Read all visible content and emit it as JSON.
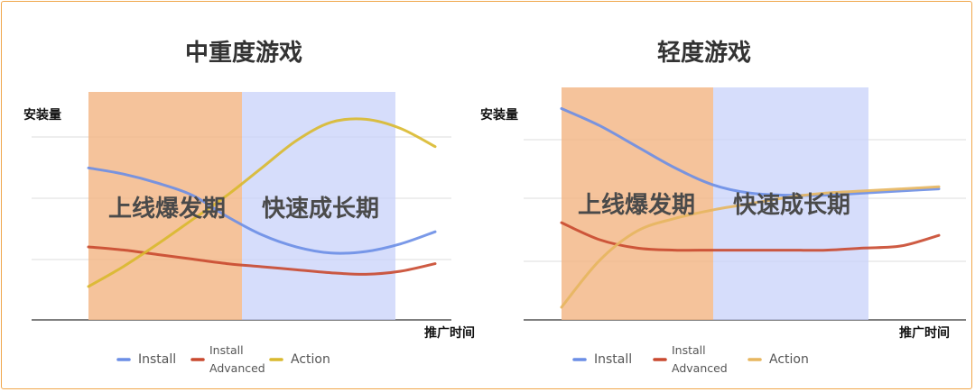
{
  "chart_data": [
    {
      "type": "line",
      "title": "中重度游戏",
      "ylabel": "安装量",
      "xlabel": "推广时间",
      "phases": [
        "上线爆发期",
        "快速成长期"
      ],
      "legend": [
        "Install",
        "Install Advanced",
        "Action"
      ],
      "grid": true,
      "legend_position": "bottom",
      "colors": {
        "phase1": "#f3b98a",
        "phase2": "#c8d2fa",
        "Install": "#6b8ee6",
        "Install Advanced": "#c9492f",
        "Action": "#d9b92e"
      },
      "x": [
        0,
        10,
        20,
        30,
        40,
        50,
        60,
        70,
        80,
        90,
        100
      ],
      "series": [
        {
          "name": "Install",
          "values": [
            100,
            96,
            90,
            82,
            68,
            56,
            48,
            44,
            45,
            50,
            58
          ]
        },
        {
          "name": "Install Advanced",
          "values": [
            48,
            46,
            43,
            40,
            37,
            35,
            33,
            31,
            30,
            32,
            37
          ]
        },
        {
          "name": "Action",
          "values": [
            22,
            35,
            50,
            66,
            82,
            100,
            118,
            130,
            132,
            126,
            114
          ]
        }
      ]
    },
    {
      "type": "line",
      "title": "轻度游戏",
      "ylabel": "安装量",
      "xlabel": "推广时间",
      "phases": [
        "上线爆发期",
        "快速成长期"
      ],
      "legend": [
        "Install",
        "Install Advanced",
        "Action"
      ],
      "grid": true,
      "legend_position": "bottom",
      "colors": {
        "phase1": "#f3b98a",
        "phase2": "#c8d2fa",
        "Install": "#6b8ee6",
        "Install Advanced": "#c9492f",
        "Action": "#e7b65f"
      },
      "x": [
        0,
        10,
        20,
        30,
        40,
        50,
        60,
        70,
        80,
        90,
        100
      ],
      "series": [
        {
          "name": "Install",
          "values": [
            100,
            92,
            82,
            72,
            64,
            60,
            59,
            59,
            60,
            61,
            62
          ]
        },
        {
          "name": "Install Advanced",
          "values": [
            46,
            38,
            34,
            33,
            33,
            33,
            33,
            33,
            34,
            35,
            40
          ]
        },
        {
          "name": "Action",
          "values": [
            6,
            28,
            42,
            48,
            52,
            55,
            58,
            60,
            61,
            62,
            63
          ]
        }
      ]
    }
  ]
}
